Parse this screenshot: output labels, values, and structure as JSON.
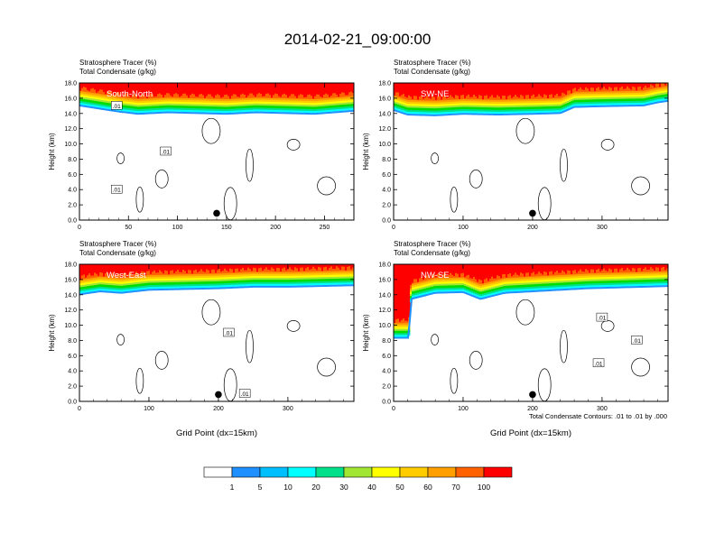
{
  "title": "2014-02-21_09:00:00",
  "colorbar": {
    "levels": [
      "1",
      "5",
      "10",
      "20",
      "30",
      "40",
      "50",
      "60",
      "70",
      "100"
    ],
    "colors": [
      "#ffffff",
      "#1e90ff",
      "#00bfff",
      "#00ffff",
      "#00e08a",
      "#00dd00",
      "#a0e632",
      "#ffff00",
      "#ffcc00",
      "#ffa000",
      "#ff6000",
      "#ff0000"
    ]
  },
  "contour_note": "Total Condensate Contours: .01 to .01 by .000",
  "chart_data": [
    {
      "type": "heatmap",
      "label": "South-North",
      "subtitle1": "Stratosphere Tracer   (%)",
      "subtitle2": "Total Condensate   (g/kg)",
      "ylabel": "Height (km)",
      "xlabel": "",
      "xlim": [
        0,
        280
      ],
      "ylim": [
        0,
        18
      ],
      "xticks": [
        "0",
        "50",
        "100",
        "150",
        "200",
        "250"
      ],
      "yticks": [
        "0.0",
        "2.0",
        "4.0",
        "6.0",
        "8.0",
        "10.0",
        "12.0",
        "14.0",
        "16.0",
        "18.0"
      ],
      "marker_x": 140,
      "contour_labels": [
        ".01",
        ".01",
        ".01"
      ],
      "contour_label_pos": [
        [
          38,
          15
        ],
        [
          88,
          9
        ],
        [
          38,
          4
        ]
      ],
      "tropopause": [
        [
          0,
          15.2
        ],
        [
          20,
          14.8
        ],
        [
          40,
          14.4
        ],
        [
          60,
          14.1
        ],
        [
          90,
          14.3
        ],
        [
          120,
          14.2
        ],
        [
          150,
          14.1
        ],
        [
          180,
          14.3
        ],
        [
          210,
          14.2
        ],
        [
          240,
          14.1
        ],
        [
          260,
          14.3
        ],
        [
          280,
          14.5
        ]
      ]
    },
    {
      "type": "heatmap",
      "label": "SW-NE",
      "subtitle1": "Stratosphere Tracer   (%)",
      "subtitle2": "Total Condensate   (g/kg)",
      "ylabel": "Height (km)",
      "xlabel": "",
      "xlim": [
        0,
        395
      ],
      "ylim": [
        0,
        18
      ],
      "xticks": [
        "0",
        "100",
        "200",
        "300"
      ],
      "yticks": [
        "0.0",
        "2.0",
        "4.0",
        "6.0",
        "8.0",
        "10.0",
        "12.0",
        "14.0",
        "16.0",
        "18.0"
      ],
      "marker_x": 200,
      "contour_labels": [],
      "contour_label_pos": [],
      "tropopause": [
        [
          0,
          14.6
        ],
        [
          20,
          14.0
        ],
        [
          60,
          13.9
        ],
        [
          100,
          14.1
        ],
        [
          150,
          14.0
        ],
        [
          200,
          14.1
        ],
        [
          240,
          14.2
        ],
        [
          260,
          15.0
        ],
        [
          300,
          15.1
        ],
        [
          360,
          15.2
        ],
        [
          380,
          15.6
        ],
        [
          395,
          15.8
        ]
      ]
    },
    {
      "type": "heatmap",
      "label": "West-East",
      "subtitle1": "Stratosphere Tracer   (%)",
      "subtitle2": "Total Condensate   (g/kg)",
      "ylabel": "Height (km)",
      "xlabel": "Grid Point (dx=15km)",
      "xlim": [
        0,
        395
      ],
      "ylim": [
        0,
        18
      ],
      "xticks": [
        "0",
        "100",
        "200",
        "300"
      ],
      "yticks": [
        "0.0",
        "2.0",
        "4.0",
        "6.0",
        "8.0",
        "10.0",
        "12.0",
        "14.0",
        "16.0",
        "18.0"
      ],
      "marker_x": 200,
      "contour_labels": [
        ".01",
        ".01"
      ],
      "contour_label_pos": [
        [
          215,
          9
        ],
        [
          238,
          1
        ]
      ],
      "tropopause": [
        [
          0,
          14.2
        ],
        [
          30,
          14.6
        ],
        [
          60,
          14.4
        ],
        [
          100,
          14.8
        ],
        [
          150,
          14.9
        ],
        [
          200,
          15.0
        ],
        [
          250,
          15.2
        ],
        [
          300,
          15.2
        ],
        [
          350,
          15.3
        ],
        [
          395,
          15.4
        ]
      ]
    },
    {
      "type": "heatmap",
      "label": "NW-SE",
      "subtitle1": "Stratosphere Tracer   (%)",
      "subtitle2": "Total Condensate   (g/kg)",
      "ylabel": "Height (km)",
      "xlabel": "Grid Point (dx=15km)",
      "xlim": [
        0,
        395
      ],
      "ylim": [
        0,
        18
      ],
      "xticks": [
        "0",
        "100",
        "200",
        "300"
      ],
      "yticks": [
        "0.0",
        "2.0",
        "4.0",
        "6.0",
        "8.0",
        "10.0",
        "12.0",
        "14.0",
        "16.0",
        "18.0"
      ],
      "marker_x": 200,
      "contour_labels": [
        ".01",
        ".01",
        ".01"
      ],
      "contour_label_pos": [
        [
          300,
          11
        ],
        [
          350,
          8
        ],
        [
          295,
          5
        ]
      ],
      "tropopause": [
        [
          0,
          8.5
        ],
        [
          22,
          8.5
        ],
        [
          25,
          13.6
        ],
        [
          60,
          14.4
        ],
        [
          100,
          14.5
        ],
        [
          125,
          13.6
        ],
        [
          160,
          14.4
        ],
        [
          200,
          14.6
        ],
        [
          240,
          14.8
        ],
        [
          280,
          15.0
        ],
        [
          320,
          15.1
        ],
        [
          360,
          15.2
        ],
        [
          395,
          15.3
        ]
      ]
    }
  ]
}
